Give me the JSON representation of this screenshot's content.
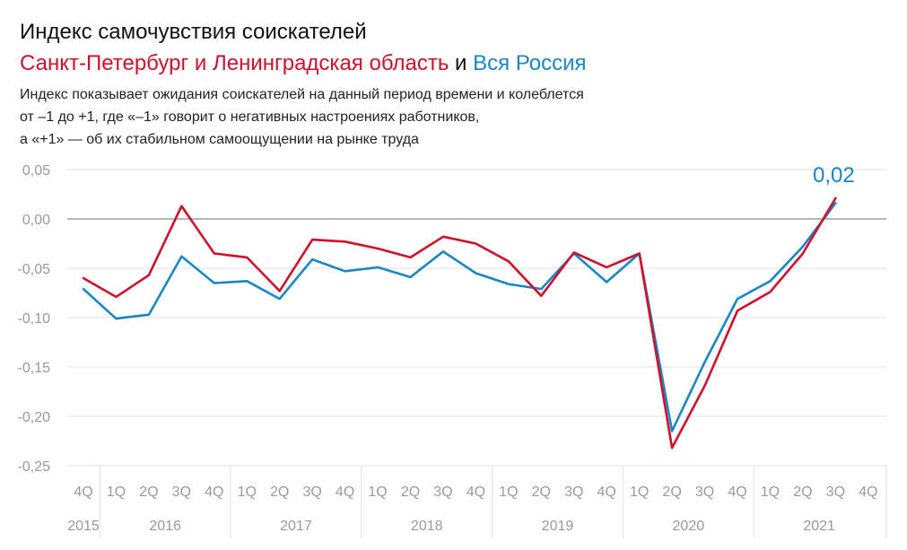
{
  "title": "Индекс самочувствия соискателей",
  "subtitle": {
    "region": "Санкт-Петербург и Ленинградская область",
    "connector": " и ",
    "country": "Вся Россия"
  },
  "note": [
    "Индекс показывает ожидания соискателей на данный период времени и колеблется",
    "от –1 до +1, где «–1» говорит о негативных настроениях работников,",
    "а «+1» — об их стабильном самоощущении на рынке труда"
  ],
  "colors": {
    "region": "#d0102b",
    "country": "#1a86c8",
    "grid": "#e2e2e2",
    "zero": "#8c8c8c",
    "tick": "#9a9a9a"
  },
  "chart_data": {
    "type": "line",
    "x": [
      "4Q",
      "1Q",
      "2Q",
      "3Q",
      "4Q",
      "1Q",
      "2Q",
      "3Q",
      "4Q",
      "1Q",
      "2Q",
      "3Q",
      "4Q",
      "1Q",
      "2Q",
      "3Q",
      "4Q",
      "1Q",
      "2Q",
      "3Q",
      "4Q",
      "1Q",
      "2Q",
      "3Q",
      "4Q"
    ],
    "years": [
      {
        "label": "2015",
        "quarters": 1
      },
      {
        "label": "2016",
        "quarters": 4
      },
      {
        "label": "2017",
        "quarters": 4
      },
      {
        "label": "2018",
        "quarters": 4
      },
      {
        "label": "2019",
        "quarters": 4
      },
      {
        "label": "2020",
        "quarters": 4
      },
      {
        "label": "2021",
        "quarters": 4
      }
    ],
    "series": [
      {
        "name": "Санкт-Петербург и Ленинградская область",
        "color": "#d0102b",
        "values": [
          -0.06,
          -0.079,
          -0.057,
          0.013,
          -0.035,
          -0.039,
          -0.073,
          -0.021,
          -0.023,
          -0.03,
          -0.039,
          -0.018,
          -0.025,
          -0.043,
          -0.078,
          -0.034,
          -0.049,
          -0.035,
          -0.232,
          -0.169,
          -0.093,
          -0.074,
          -0.035,
          0.021,
          null
        ]
      },
      {
        "name": "Вся Россия",
        "color": "#1a86c8",
        "values": [
          -0.071,
          -0.101,
          -0.097,
          -0.038,
          -0.065,
          -0.063,
          -0.081,
          -0.041,
          -0.053,
          -0.049,
          -0.059,
          -0.033,
          -0.055,
          -0.066,
          -0.071,
          -0.035,
          -0.064,
          -0.035,
          -0.215,
          -0.145,
          -0.081,
          -0.063,
          -0.028,
          0.016,
          null
        ]
      }
    ],
    "yticks": [
      "0,05",
      "0,00",
      "-0,05",
      "-0,10",
      "-0,15",
      "-0,20",
      "-0,25"
    ],
    "ytick_values": [
      0.05,
      0.0,
      -0.05,
      -0.1,
      -0.15,
      -0.2,
      -0.25
    ],
    "ylim": [
      -0.25,
      0.05
    ],
    "annotation": {
      "text": "0,02",
      "color": "#1a86c8",
      "index": 23
    },
    "grid": true,
    "legend": "subtitle"
  }
}
